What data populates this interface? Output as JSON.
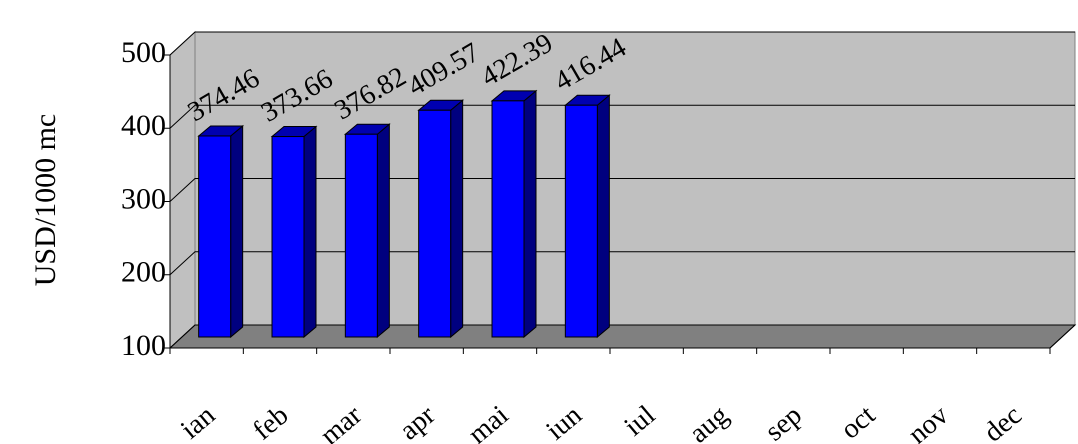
{
  "chart_data": {
    "type": "bar3d",
    "y_label": "USD/1000 mc",
    "categories": [
      "ian",
      "feb",
      "mar",
      "apr",
      "mai",
      "iun",
      "iul",
      "aug",
      "sep",
      "oct",
      "nov",
      "dec"
    ],
    "values": [
      374.46,
      373.66,
      376.82,
      409.57,
      422.39,
      416.44,
      null,
      null,
      null,
      null,
      null,
      null
    ],
    "color": "#0000ff",
    "ylim": [
      100,
      500
    ],
    "yticks": [
      100,
      200,
      300,
      400,
      500
    ],
    "grid": true
  }
}
